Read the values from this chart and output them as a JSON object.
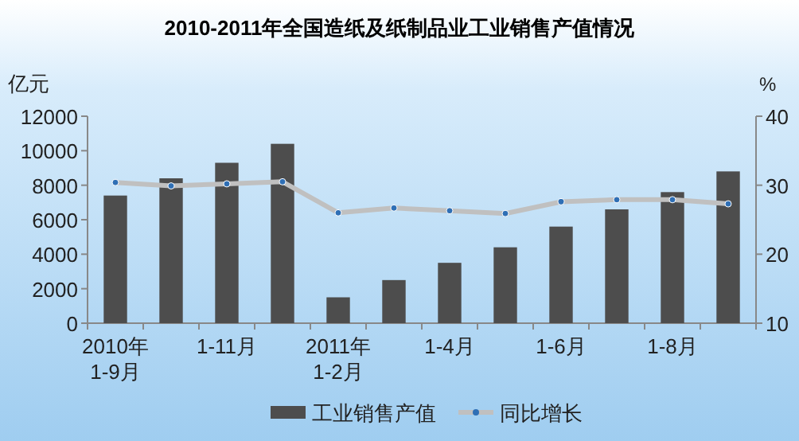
{
  "chart_data": {
    "type": "bar",
    "title": "2010-2011年全国造纸及纸制品业工业销售产值情况",
    "ylabel": "亿元",
    "y2label": "%",
    "categories": [
      "2010年\n1-9月",
      null,
      "1-11月",
      null,
      "2011年\n1-2月",
      null,
      "1-4月",
      null,
      "1-6月",
      null,
      "1-8月",
      null
    ],
    "series": [
      {
        "name": "工业销售产值",
        "color": "#4d4d4d",
        "values": [
          7400,
          8400,
          9300,
          10400,
          1500,
          2500,
          3500,
          4400,
          5600,
          6600,
          7600,
          8800
        ]
      },
      {
        "name": "同比增长",
        "type": "line",
        "axis": "y2",
        "color": "#c0c0c0",
        "marker": "circle",
        "values": [
          30.4,
          29.9,
          30.2,
          30.5,
          26.0,
          26.7,
          26.3,
          25.9,
          27.6,
          27.9,
          27.9,
          27.3
        ]
      }
    ],
    "ylim": [
      0,
      12000
    ],
    "yticks": [
      0,
      2000,
      4000,
      6000,
      8000,
      10000,
      12000
    ],
    "y2lim": [
      10,
      40
    ],
    "y2ticks": [
      10,
      20,
      30,
      40
    ],
    "legend": "bottom"
  }
}
